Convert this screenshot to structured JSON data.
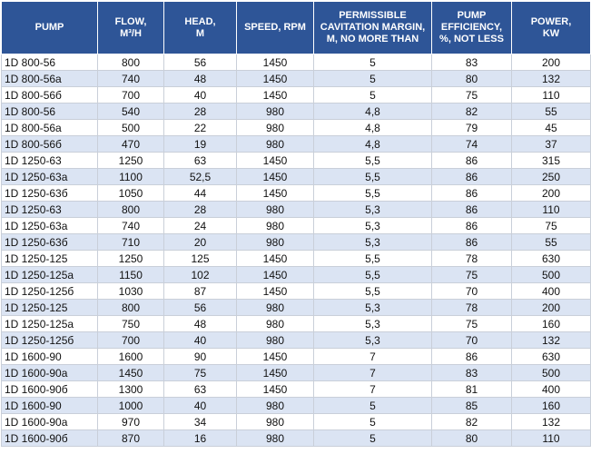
{
  "table": {
    "header": [
      "PUMP",
      "FLOW,\nM³/H",
      "HEAD,\nM",
      "SPEED, RPM",
      "PERMISSIBLE\nCAVITATION MARGIN,\nM, NO MORE THAN",
      "PUMP\nEFFICIENCY,\n%, NOT LESS",
      "POWER,\nKW"
    ],
    "rows": [
      [
        "1D 800-56",
        "800",
        "56",
        "1450",
        "5",
        "83",
        "200"
      ],
      [
        "1D 800-56a",
        "740",
        "48",
        "1450",
        "5",
        "80",
        "132"
      ],
      [
        "1D 800-56б",
        "700",
        "40",
        "1450",
        "5",
        "75",
        "110"
      ],
      [
        "1D 800-56",
        "540",
        "28",
        "980",
        "4,8",
        "82",
        "55"
      ],
      [
        "1D 800-56a",
        "500",
        "22",
        "980",
        "4,8",
        "79",
        "45"
      ],
      [
        "1D 800-56б",
        "470",
        "19",
        "980",
        "4,8",
        "74",
        "37"
      ],
      [
        "1D 1250-63",
        "1250",
        "63",
        "1450",
        "5,5",
        "86",
        "315"
      ],
      [
        "1D 1250-63a",
        "1100",
        "52,5",
        "1450",
        "5,5",
        "86",
        "250"
      ],
      [
        "1D 1250-63б",
        "1050",
        "44",
        "1450",
        "5,5",
        "86",
        "200"
      ],
      [
        "1D 1250-63",
        "800",
        "28",
        "980",
        "5,3",
        "86",
        "110"
      ],
      [
        "1D 1250-63a",
        "740",
        "24",
        "980",
        "5,3",
        "86",
        "75"
      ],
      [
        "1D 1250-63б",
        "710",
        "20",
        "980",
        "5,3",
        "86",
        "55"
      ],
      [
        "1D 1250-125",
        "1250",
        "125",
        "1450",
        "5,5",
        "78",
        "630"
      ],
      [
        "1D 1250-125a",
        "1150",
        "102",
        "1450",
        "5,5",
        "75",
        "500"
      ],
      [
        "1D 1250-125б",
        "1030",
        "87",
        "1450",
        "5,5",
        "70",
        "400"
      ],
      [
        "1D 1250-125",
        "800",
        "56",
        "980",
        "5,3",
        "78",
        "200"
      ],
      [
        "1D 1250-125a",
        "750",
        "48",
        "980",
        "5,3",
        "75",
        "160"
      ],
      [
        "1D 1250-125б",
        "700",
        "40",
        "980",
        "5,3",
        "70",
        "132"
      ],
      [
        "1D 1600-90",
        "1600",
        "90",
        "1450",
        "7",
        "86",
        "630"
      ],
      [
        "1D 1600-90a",
        "1450",
        "75",
        "1450",
        "7",
        "83",
        "500"
      ],
      [
        "1D 1600-90б",
        "1300",
        "63",
        "1450",
        "7",
        "81",
        "400"
      ],
      [
        "1D 1600-90",
        "1000",
        "40",
        "980",
        "5",
        "85",
        "160"
      ],
      [
        "1D 1600-90a",
        "970",
        "34",
        "980",
        "5",
        "82",
        "132"
      ],
      [
        "1D 1600-90б",
        "870",
        "16",
        "980",
        "5",
        "80",
        "110"
      ]
    ]
  }
}
